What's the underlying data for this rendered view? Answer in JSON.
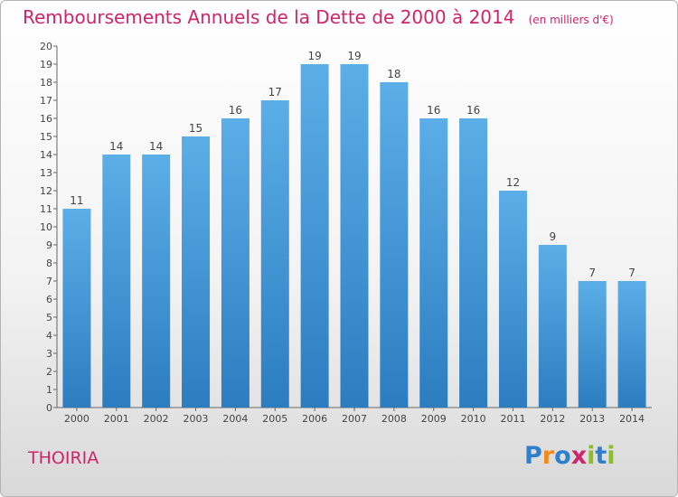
{
  "header": {
    "title": "Remboursements Annuels de la Dette de 2000 à 2014",
    "unit": "(en milliers d'€)"
  },
  "commune": "THOIRIA",
  "logo": {
    "text": "Proxiti",
    "letters": [
      "P",
      "r",
      "o",
      "x",
      "i",
      "t",
      "i"
    ],
    "colors": [
      "#2f7fd0",
      "#f08a1d",
      "#2f7fd0",
      "#d0246c",
      "#8cbf26",
      "#2f7fd0",
      "#8cbf26"
    ]
  },
  "colors": {
    "title": "#d0246c",
    "bar_top": "#5caee8",
    "bar_bottom": "#2c7dc0"
  },
  "chart_data": {
    "type": "bar",
    "title": "Remboursements Annuels de la Dette de 2000 à 2014",
    "xlabel": "",
    "ylabel": "en milliers d'€",
    "categories": [
      "2000",
      "2001",
      "2002",
      "2003",
      "2004",
      "2005",
      "2006",
      "2007",
      "2008",
      "2009",
      "2010",
      "2011",
      "2012",
      "2013",
      "2014"
    ],
    "values": [
      11,
      14,
      14,
      15,
      16,
      17,
      19,
      19,
      18,
      16,
      16,
      12,
      9,
      7,
      7
    ],
    "ylim": [
      0,
      20
    ],
    "yticks": [
      0,
      1,
      2,
      3,
      4,
      5,
      6,
      7,
      8,
      9,
      10,
      11,
      12,
      13,
      14,
      15,
      16,
      17,
      18,
      19,
      20
    ],
    "grid": false
  }
}
